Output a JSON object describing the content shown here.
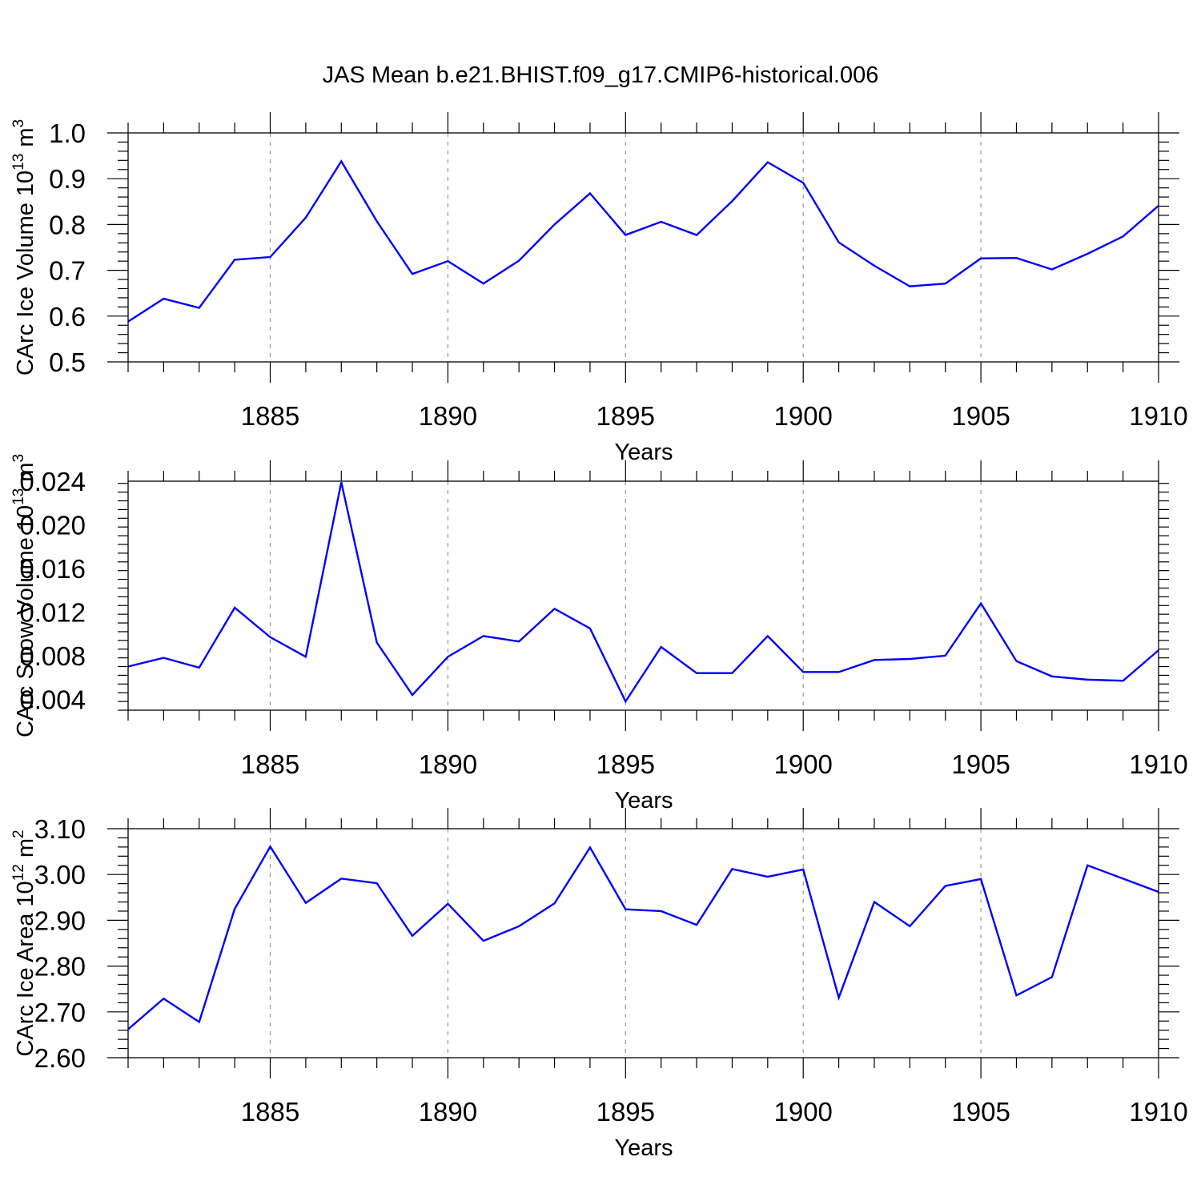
{
  "title": "JAS Mean b.e21.BHIST.f09_g17.CMIP6-historical.006",
  "colors": {
    "line": "#0000ff",
    "axis": "#000000",
    "grid": "#999999"
  },
  "chart_data": [
    {
      "type": "line",
      "title": "JAS Mean b.e21.BHIST.f09_g17.CMIP6-historical.006",
      "xlabel": "Years",
      "ylabel": "CArc Ice Volume 10",
      "ylabel_exp": "13",
      "ylabel_unit": " m",
      "ylabel_unit_exp": "3",
      "xlim": [
        1881,
        1910
      ],
      "ylim": [
        0.5,
        1.0
      ],
      "x_ticks": [
        "1885",
        "1890",
        "1895",
        "1900",
        "1905",
        "1910"
      ],
      "y_ticks": [
        "0.5",
        "0.6",
        "0.7",
        "0.8",
        "0.9",
        "1.0"
      ],
      "x": [
        1881,
        1882,
        1883,
        1884,
        1885,
        1886,
        1887,
        1888,
        1889,
        1890,
        1891,
        1892,
        1893,
        1894,
        1895,
        1896,
        1897,
        1898,
        1899,
        1900,
        1901,
        1902,
        1903,
        1904,
        1905,
        1906,
        1907,
        1908,
        1909,
        1910
      ],
      "values": [
        0.588,
        0.638,
        0.618,
        0.723,
        0.729,
        0.815,
        0.938,
        0.807,
        0.692,
        0.72,
        0.671,
        0.721,
        0.8,
        0.868,
        0.777,
        0.806,
        0.777,
        0.851,
        0.936,
        0.891,
        0.761,
        0.71,
        0.665,
        0.671,
        0.726,
        0.727,
        0.702,
        0.736,
        0.774,
        0.841
      ]
    },
    {
      "type": "line",
      "xlabel": "Years",
      "ylabel": "CArc Snow Volume 10",
      "ylabel_exp": "13",
      "ylabel_unit": " m",
      "ylabel_unit_exp": "3",
      "xlim": [
        1881,
        1910
      ],
      "ylim": [
        0.003,
        0.024
      ],
      "x_ticks": [
        "1885",
        "1890",
        "1895",
        "1900",
        "1905",
        "1910"
      ],
      "y_ticks": [
        "0.004",
        "0.008",
        "0.012",
        "0.016",
        "0.020",
        "0.024"
      ],
      "x": [
        1881,
        1882,
        1883,
        1884,
        1885,
        1886,
        1887,
        1888,
        1889,
        1890,
        1891,
        1892,
        1893,
        1894,
        1895,
        1896,
        1897,
        1898,
        1899,
        1900,
        1901,
        1902,
        1903,
        1904,
        1905,
        1906,
        1907,
        1908,
        1909,
        1910
      ],
      "values": [
        0.007,
        0.0078,
        0.0069,
        0.0124,
        0.0097,
        0.0079,
        0.0239,
        0.0092,
        0.0044,
        0.0079,
        0.0098,
        0.0093,
        0.0123,
        0.0105,
        0.0038,
        0.0088,
        0.0064,
        0.0064,
        0.0098,
        0.0065,
        0.0065,
        0.0076,
        0.0077,
        0.008,
        0.0128,
        0.0075,
        0.0061,
        0.0058,
        0.0057,
        0.0085
      ]
    },
    {
      "type": "line",
      "xlabel": "Years",
      "ylabel": "CArc Ice Area 10",
      "ylabel_exp": "12",
      "ylabel_unit": " m",
      "ylabel_unit_exp": "2",
      "xlim": [
        1881,
        1910
      ],
      "ylim": [
        2.6,
        3.1
      ],
      "x_ticks": [
        "1885",
        "1890",
        "1895",
        "1900",
        "1905",
        "1910"
      ],
      "y_ticks": [
        "2.60",
        "2.70",
        "2.80",
        "2.90",
        "3.00",
        "3.10"
      ],
      "x": [
        1881,
        1882,
        1883,
        1884,
        1885,
        1886,
        1887,
        1888,
        1889,
        1890,
        1891,
        1892,
        1893,
        1894,
        1895,
        1896,
        1897,
        1898,
        1899,
        1900,
        1901,
        1902,
        1903,
        1904,
        1905,
        1906,
        1907,
        1908,
        1909,
        1910
      ],
      "values": [
        2.662,
        2.729,
        2.678,
        2.925,
        3.061,
        2.938,
        2.991,
        2.981,
        2.866,
        2.936,
        2.855,
        2.887,
        2.937,
        3.059,
        2.924,
        2.92,
        2.89,
        3.012,
        2.995,
        3.011,
        2.731,
        2.94,
        2.887,
        2.975,
        2.99,
        2.736,
        2.776,
        3.02,
        2.991,
        2.962
      ]
    }
  ]
}
